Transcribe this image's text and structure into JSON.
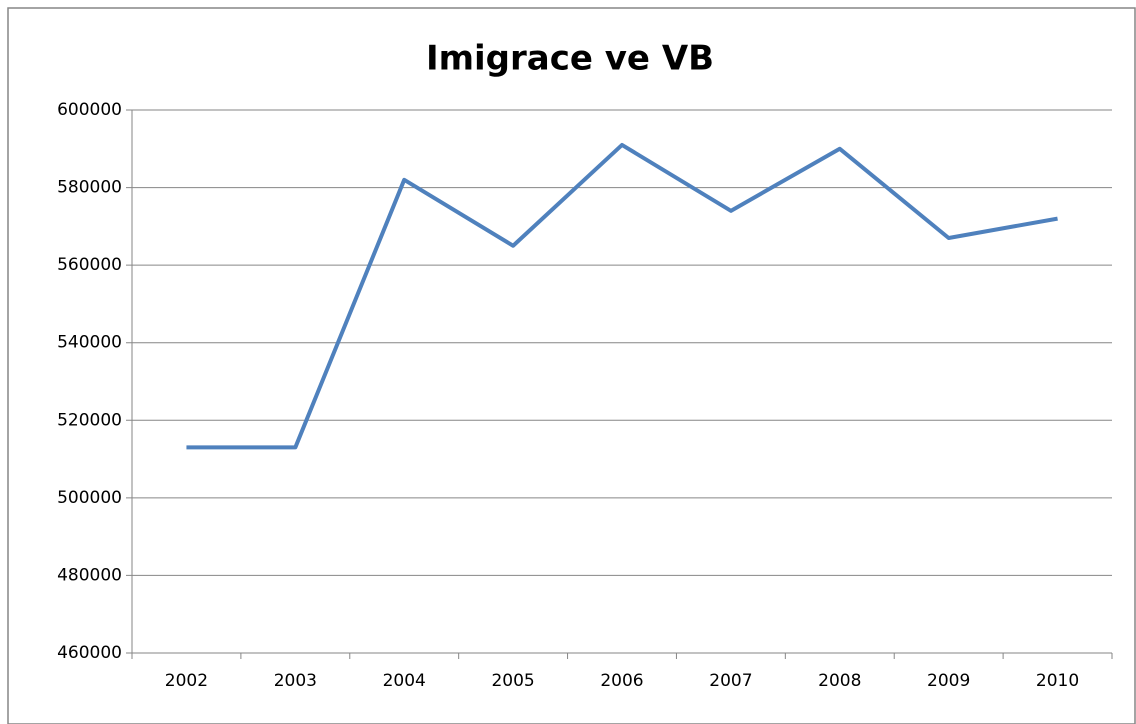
{
  "chart_data": {
    "type": "line",
    "title": "Imigrace ve VB",
    "categories": [
      "2002",
      "2003",
      "2004",
      "2005",
      "2006",
      "2007",
      "2008",
      "2009",
      "2010"
    ],
    "series": [
      {
        "name": "Imigrace",
        "color": "#4f81bd",
        "values": [
          513000,
          513000,
          582000,
          565000,
          591000,
          574000,
          590000,
          567000,
          572000
        ]
      }
    ],
    "ylim": [
      460000,
      600000
    ],
    "yticks": [
      460000,
      480000,
      500000,
      520000,
      540000,
      560000,
      580000,
      600000
    ],
    "grid": true
  }
}
